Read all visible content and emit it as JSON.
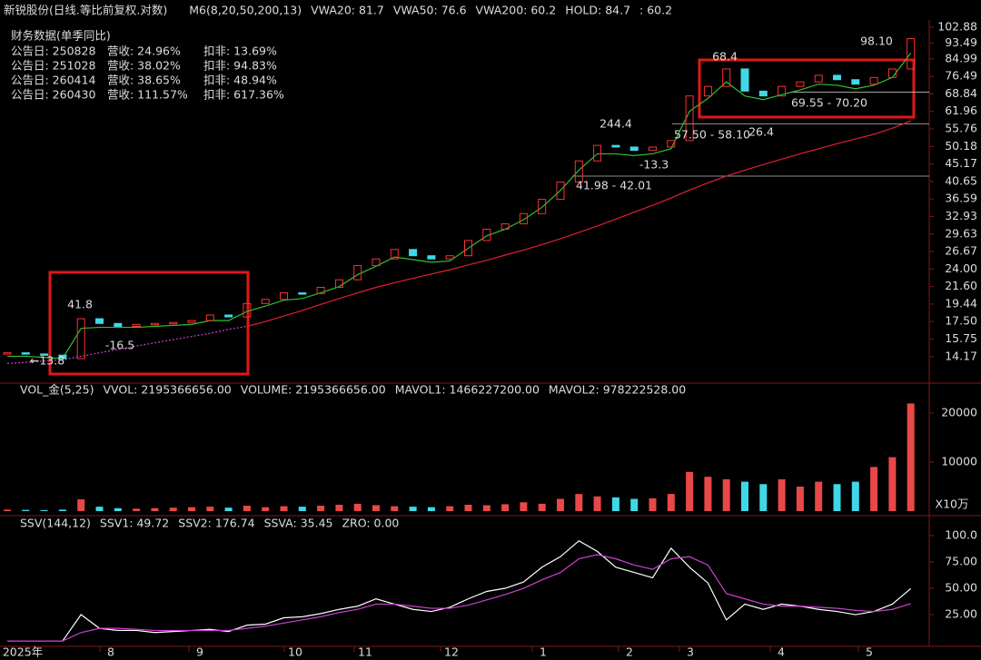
{
  "chart_data": {
    "type": "candlestick",
    "title": "新锐股份(日线.等比前复权.对数)",
    "header": [
      {
        "text": "M6(8,20,50,200,13)",
        "color": "#e0e0e0"
      },
      {
        "text": "VWA20: 81.7",
        "color": "#e0e0e0"
      },
      {
        "text": "VWA50: 76.6",
        "color": "#e8c020"
      },
      {
        "text": "VWA200: 60.2",
        "color": "#d040d0"
      },
      {
        "text": "HOLD: 84.7",
        "color": "#30c030"
      },
      {
        "text": ": 60.2",
        "color": "#ff4040"
      }
    ],
    "finance_title": "财务数据(单季同比)",
    "finance_rows": [
      [
        "公告日: 250828",
        "营收:  24.96%",
        "扣非:  13.69%"
      ],
      [
        "公告日: 251028",
        "营收:  38.02%",
        "扣非:  94.83%"
      ],
      [
        "公告日: 260414",
        "营收:  38.65%",
        "扣非:  48.94%"
      ],
      [
        "公告日: 260430",
        "营收:  111.57%",
        "扣非:  617.36%"
      ]
    ],
    "log_scale": true,
    "ylim": [
      12.35,
      107.4
    ],
    "yticks": [
      102.88,
      93.49,
      84.99,
      76.49,
      68.84,
      61.96,
      55.76,
      50.18,
      45.17,
      40.65,
      36.59,
      32.93,
      29.63,
      26.67,
      {
        "value": 24,
        "label": "24.00"
      },
      {
        "value": 21.6,
        "label": "21.60"
      },
      19.44,
      {
        "value": 17.5,
        "label": "17.50"
      },
      15.75,
      14.17
    ],
    "close": [
      14.5,
      14.4,
      14.3,
      14.0,
      17.8,
      17.3,
      17.0,
      17.2,
      17.3,
      17.4,
      17.6,
      18.2,
      18.0,
      19.5,
      20.0,
      20.8,
      20.7,
      21.5,
      22.5,
      24.5,
      25.5,
      27.0,
      26.0,
      25.5,
      26.0,
      28.5,
      30.5,
      31.5,
      33.5,
      36.5,
      40.5,
      46,
      50.5,
      50,
      49,
      50,
      52,
      68,
      72,
      80,
      70,
      68,
      72,
      74,
      77,
      75,
      73,
      76,
      80,
      96
    ],
    "series": [
      {
        "name": "M6",
        "color": "#30c030",
        "values": [
          14.2,
          14.2,
          14.1,
          14.0,
          16.8,
          16.9,
          16.9,
          16.9,
          17.0,
          17.1,
          17.2,
          17.6,
          17.6,
          18.6,
          19.2,
          19.9,
          20.1,
          20.8,
          21.6,
          23.2,
          24.4,
          25.8,
          25.4,
          25.0,
          25.2,
          27.2,
          29.3,
          30.5,
          32.3,
          34.8,
          38.5,
          43.5,
          48.0,
          48.0,
          47.5,
          48.0,
          49.5,
          62.0,
          67.0,
          74.0,
          68.0,
          66.5,
          68.5,
          70.5,
          73.0,
          72.5,
          71.0,
          72.5,
          76.0,
          88.0
        ]
      },
      {
        "name": "MA200",
        "color": "#d040d0",
        "dashed": true,
        "values": [
          13.6,
          13.7,
          13.8,
          13.9,
          14.2,
          14.5,
          14.8,
          15.1,
          15.4,
          15.7,
          16.0,
          16.3,
          16.7,
          17.0,
          null,
          null,
          null,
          null,
          null,
          null,
          null,
          null,
          null,
          null,
          null,
          null,
          null,
          null,
          null,
          null,
          null,
          null,
          null,
          null,
          null,
          null,
          null,
          null,
          null,
          null,
          null,
          null,
          null,
          null,
          null,
          null,
          null,
          null,
          null,
          null
        ]
      },
      {
        "name": "MA200L",
        "color": "#e02030",
        "values": [
          null,
          null,
          null,
          null,
          null,
          null,
          null,
          null,
          null,
          null,
          null,
          null,
          null,
          17.0,
          17.5,
          18.1,
          18.7,
          19.4,
          20.1,
          20.8,
          21.5,
          22.1,
          22.7,
          23.3,
          23.9,
          24.6,
          25.3,
          26.1,
          26.9,
          27.8,
          28.8,
          29.9,
          31.1,
          32.4,
          33.8,
          35.2,
          36.8,
          38.6,
          40.3,
          42.0,
          43.5,
          45.0,
          46.5,
          48.0,
          49.5,
          51.0,
          52.5,
          54.0,
          56.0,
          58.5
        ]
      }
    ],
    "annotations": [
      {
        "text": "41.8",
        "color": "#ff6060"
      },
      {
        "text": "-16.5",
        "color": "#30c030"
      },
      {
        "text": "244.4",
        "color": "#ff6060"
      },
      {
        "text": "-13.3",
        "color": "#30c030"
      },
      {
        "text": "68.4",
        "color": "#ff6060"
      },
      {
        "text": "26.4",
        "color": "#30c030"
      },
      {
        "text": "98.10",
        "color": "#ffffff"
      },
      {
        "text": "41.98 - 42.01",
        "color": "#ffffff"
      },
      {
        "text": "57.50 - 58.10",
        "color": "#ffffff"
      },
      {
        "text": "69.55 - 70.20",
        "color": "#ffffff"
      },
      {
        "text": "←13.8",
        "color": "#ffffff"
      }
    ],
    "levels": [
      41.98,
      57.5,
      69.55
    ],
    "volume": {
      "header": [
        {
          "text": "VOL_金(5,25)",
          "color": "#e0e0e0"
        },
        {
          "text": "VVOL: 2195366656.00",
          "color": "#e0e0e0"
        },
        {
          "text": "VOLUME: 2195366656.00",
          "color": "#e8c020"
        },
        {
          "text": "MAVOL1: 1466227200.00",
          "color": "#e8c020"
        },
        {
          "text": "MAVOL2: 978222528.00",
          "color": "#d040d0"
        }
      ],
      "unit": "X10万",
      "ylim": [
        0,
        22400
      ],
      "yticks": [
        20000,
        10000
      ],
      "values": [
        300,
        250,
        200,
        300,
        2400,
        900,
        600,
        500,
        600,
        700,
        800,
        900,
        700,
        1100,
        800,
        1000,
        900,
        1100,
        1300,
        1500,
        1200,
        1000,
        900,
        800,
        1000,
        1300,
        1200,
        1400,
        1800,
        1500,
        2500,
        3500,
        3000,
        2800,
        2500,
        2600,
        3500,
        8000,
        7000,
        6500,
        6000,
        5500,
        6500,
        5000,
        6000,
        5500,
        6000,
        9000,
        11000,
        21953.7
      ]
    },
    "ssv": {
      "header": [
        {
          "text": "SSV(144,12)",
          "color": "#e0e0e0"
        },
        {
          "text": "SSV1: 49.72",
          "color": "#e0e0e0"
        },
        {
          "text": "SSV2: 176.74",
          "color": "#e8c020"
        },
        {
          "text": "SSVA: 35.45",
          "color": "#d040d0"
        },
        {
          "text": "ZRO: 0.00",
          "color": "#30c030"
        }
      ],
      "ylim": [
        -3.4,
        110.3
      ],
      "yticks": [
        {
          "value": 100,
          "label": "100.0"
        },
        {
          "value": 75,
          "label": "75.00"
        },
        {
          "value": 50,
          "label": "50.00"
        },
        {
          "value": 25,
          "label": "25.00"
        }
      ],
      "series": [
        {
          "name": "SSV1",
          "color": "#ffffff",
          "values": [
            0,
            0,
            0,
            0,
            25,
            12,
            10,
            10,
            8,
            9,
            10,
            11,
            9,
            15,
            16,
            22,
            23,
            26,
            30,
            33,
            40,
            35,
            30,
            28,
            32,
            40,
            47,
            50,
            56,
            70,
            80,
            95,
            85,
            70,
            65,
            60,
            88,
            70,
            55,
            20,
            35,
            30,
            35,
            33,
            30,
            28,
            25,
            28,
            35,
            49.72
          ]
        },
        {
          "name": "SSVA",
          "color": "#d040d0",
          "values": [
            0,
            0,
            0,
            0,
            8,
            12,
            12,
            11,
            10,
            10,
            10,
            10,
            10,
            12,
            14,
            17,
            20,
            23,
            27,
            30,
            35,
            35,
            33,
            31,
            31,
            34,
            39,
            44,
            50,
            58,
            65,
            78,
            82,
            78,
            72,
            68,
            78,
            80,
            72,
            45,
            40,
            35,
            33,
            33,
            32,
            31,
            29,
            28,
            30,
            35.45
          ]
        }
      ]
    },
    "months": [
      "2025年",
      "8",
      "9",
      "10",
      "11",
      "12",
      "1",
      "2",
      "3",
      "4",
      "5"
    ]
  }
}
